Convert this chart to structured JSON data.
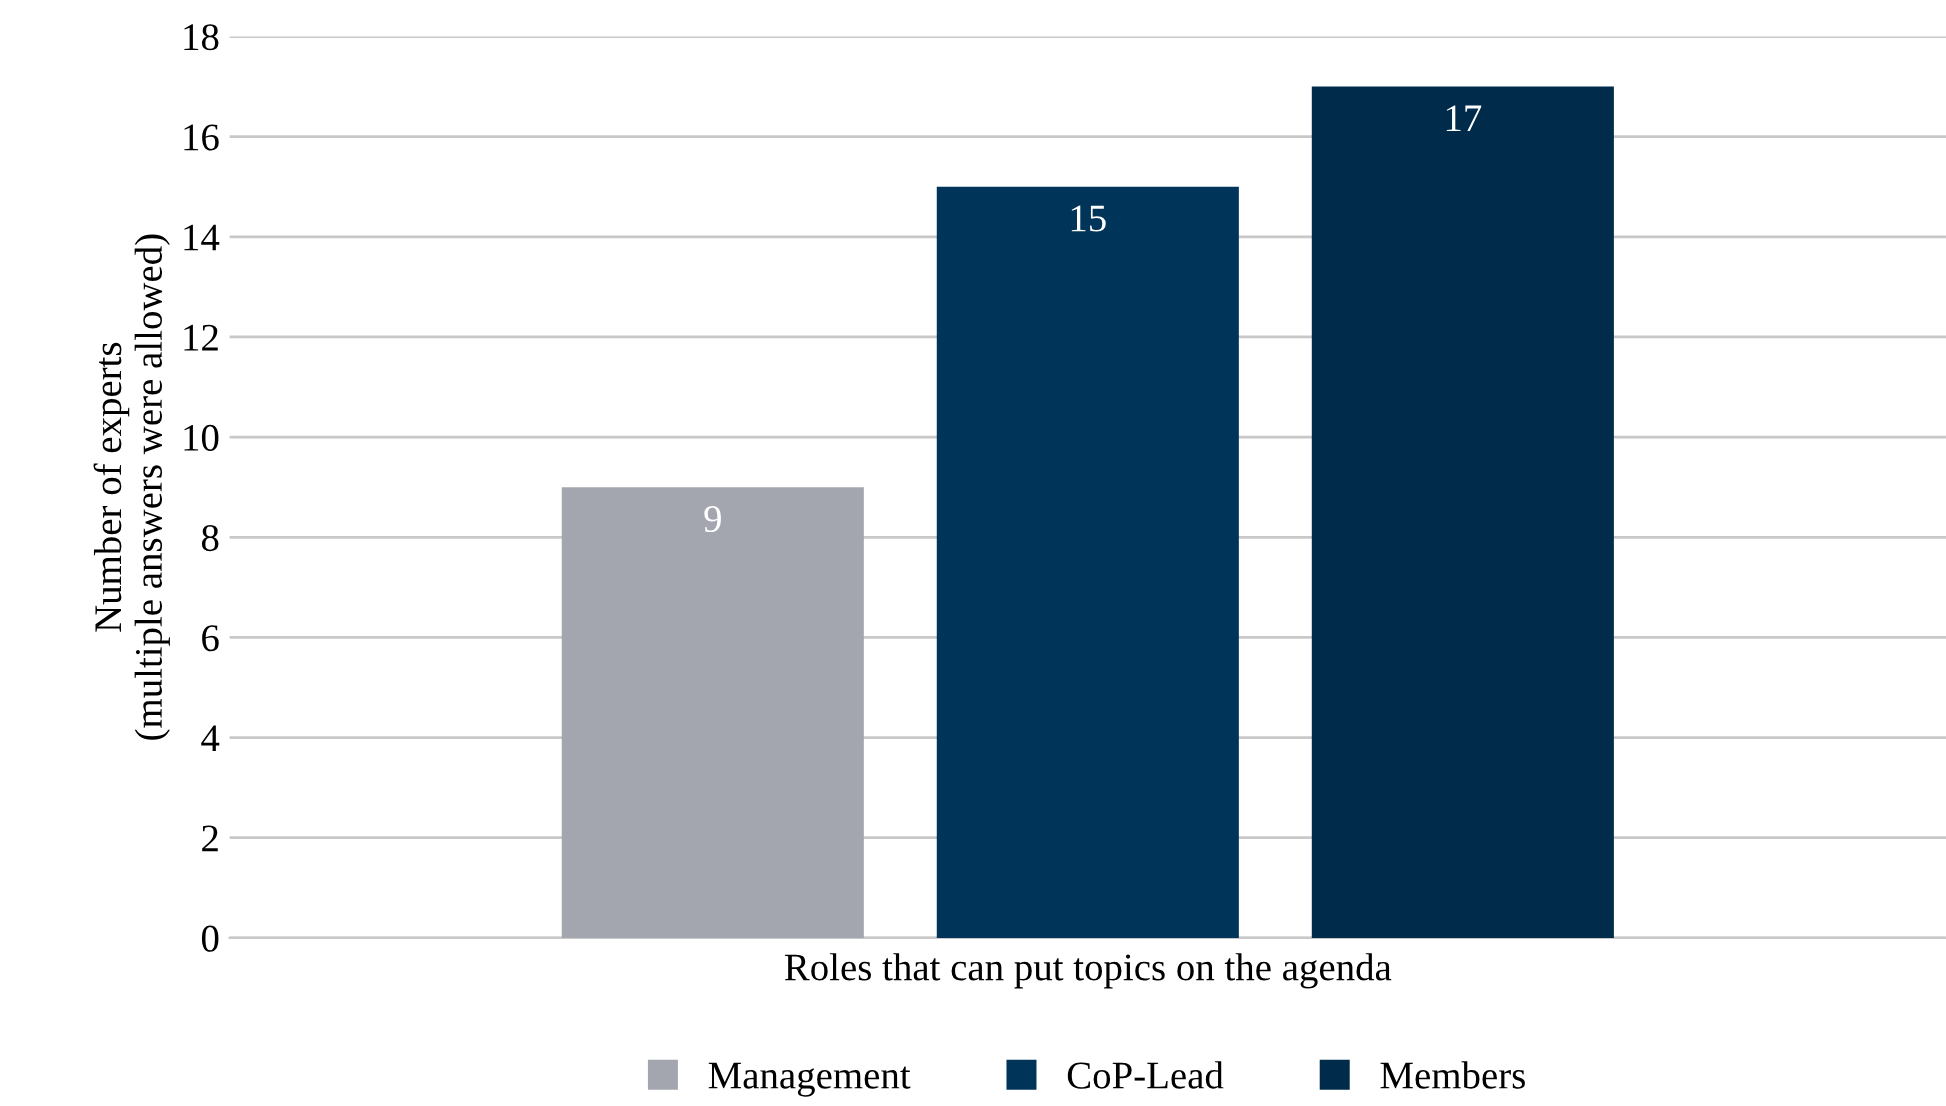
{
  "chart_data": {
    "type": "bar",
    "xlabel": "Roles that can put topics on the agenda",
    "ylabel": "Number of experts\n(multiple answers were allowed)",
    "categories": [
      null
    ],
    "series": [
      {
        "name": "Management",
        "color": "#a3a6ae",
        "values": [
          9
        ]
      },
      {
        "name": "CoP-Lead",
        "color": "#003459",
        "values": [
          15
        ]
      },
      {
        "name": "Members",
        "color": "#002b4b",
        "values": [
          17
        ]
      }
    ],
    "ylim": [
      0,
      18
    ],
    "yticks": [
      0,
      2,
      4,
      6,
      8,
      10,
      12,
      14,
      16,
      18
    ],
    "grid": "y",
    "legend": "bottom",
    "data_labels": true
  }
}
